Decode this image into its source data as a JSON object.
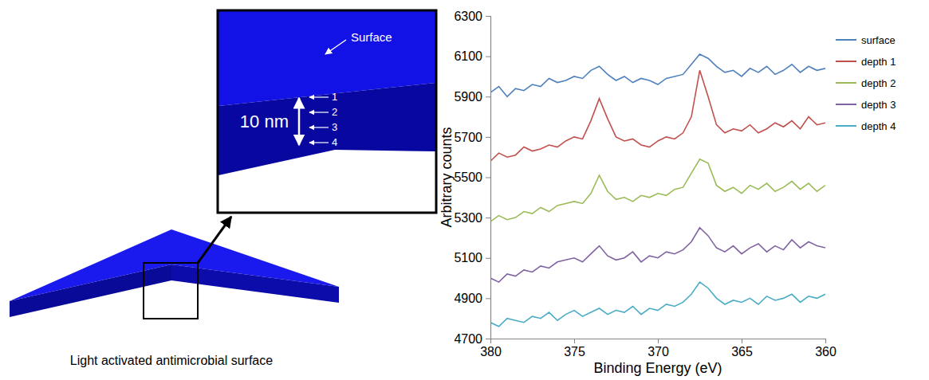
{
  "chart_data": {
    "type": "line",
    "x_label": "Binding Energy (eV)",
    "y_label": "Arbitrary counts",
    "x": [
      380,
      379.5,
      379,
      378.5,
      378,
      377.5,
      377,
      376.5,
      376,
      375.5,
      375,
      374.5,
      374,
      373.5,
      373,
      372.5,
      372,
      371.5,
      371,
      370.5,
      370,
      369.5,
      369,
      368.5,
      368,
      367.5,
      367,
      366.5,
      366,
      365.5,
      365,
      364.5,
      364,
      363.5,
      363,
      362.5,
      362,
      361.5,
      361,
      360.5,
      360
    ],
    "series": [
      {
        "name": "surface",
        "color": "#4f81bd",
        "values": [
          5920,
          5950,
          5900,
          5940,
          5930,
          5960,
          5950,
          5990,
          5970,
          5980,
          6000,
          5990,
          6030,
          6050,
          6010,
          5980,
          6000,
          5970,
          5990,
          5980,
          5960,
          5990,
          6000,
          6010,
          6060,
          6110,
          6090,
          6050,
          6020,
          6030,
          6000,
          6040,
          6020,
          6050,
          6010,
          6030,
          6060,
          6020,
          6050,
          6030,
          6040
        ]
      },
      {
        "name": "depth 1",
        "color": "#c0504d",
        "values": [
          5580,
          5620,
          5600,
          5610,
          5650,
          5630,
          5640,
          5660,
          5650,
          5680,
          5700,
          5690,
          5780,
          5890,
          5790,
          5700,
          5680,
          5690,
          5660,
          5650,
          5680,
          5700,
          5690,
          5720,
          5800,
          6030,
          5900,
          5760,
          5720,
          5740,
          5730,
          5760,
          5720,
          5740,
          5770,
          5750,
          5780,
          5740,
          5800,
          5760,
          5770
        ]
      },
      {
        "name": "depth 2",
        "color": "#9bbb59",
        "values": [
          5280,
          5310,
          5290,
          5300,
          5330,
          5320,
          5350,
          5330,
          5360,
          5370,
          5380,
          5370,
          5420,
          5510,
          5430,
          5390,
          5400,
          5380,
          5410,
          5400,
          5420,
          5410,
          5440,
          5450,
          5520,
          5590,
          5570,
          5460,
          5430,
          5450,
          5420,
          5460,
          5440,
          5470,
          5430,
          5450,
          5480,
          5440,
          5470,
          5430,
          5460
        ]
      },
      {
        "name": "depth 3",
        "color": "#8064a2",
        "values": [
          5000,
          4980,
          5020,
          5010,
          5040,
          5030,
          5060,
          5050,
          5080,
          5090,
          5100,
          5080,
          5120,
          5160,
          5110,
          5090,
          5100,
          5130,
          5080,
          5110,
          5100,
          5130,
          5120,
          5140,
          5180,
          5250,
          5210,
          5150,
          5130,
          5160,
          5120,
          5150,
          5170,
          5130,
          5160,
          5140,
          5190,
          5150,
          5180,
          5160,
          5150
        ]
      },
      {
        "name": "depth 4",
        "color": "#4bacc6",
        "values": [
          4780,
          4760,
          4800,
          4790,
          4780,
          4810,
          4800,
          4830,
          4790,
          4820,
          4840,
          4810,
          4830,
          4850,
          4820,
          4840,
          4830,
          4860,
          4820,
          4850,
          4840,
          4870,
          4860,
          4880,
          4920,
          4980,
          4950,
          4900,
          4870,
          4890,
          4880,
          4900,
          4870,
          4910,
          4890,
          4900,
          4920,
          4880,
          4910,
          4900,
          4920
        ]
      }
    ],
    "xlim": [
      380,
      360
    ],
    "xticks": [
      380,
      375,
      370,
      365,
      360
    ],
    "ylim": [
      4700,
      6300
    ],
    "yticks": [
      4700,
      4900,
      5100,
      5300,
      5500,
      5700,
      5900,
      6100,
      6300
    ],
    "grid": false,
    "legend": "right"
  },
  "diagram": {
    "caption": "Light activated antimicrobial surface",
    "surface_label": "Surface",
    "thickness_label": "10 nm",
    "depth_labels": [
      "1",
      "2",
      "3",
      "4"
    ]
  }
}
